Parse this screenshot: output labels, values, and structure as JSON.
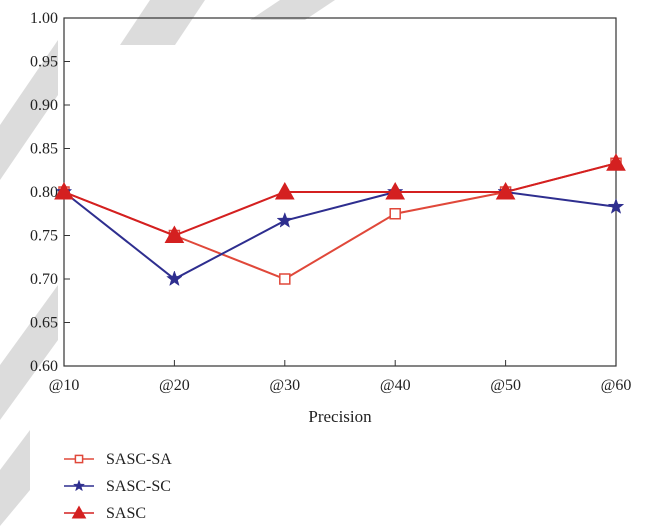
{
  "chart_data": {
    "type": "line",
    "categories": [
      "@10",
      "@20",
      "@30",
      "@40",
      "@50",
      "@60"
    ],
    "xlabel": "Precision",
    "ylabel": "",
    "ylim": [
      0.6,
      1.0
    ],
    "yticks": [
      "0.60",
      "0.65",
      "0.70",
      "0.75",
      "0.80",
      "0.85",
      "0.90",
      "0.95",
      "1.00"
    ],
    "grid": false,
    "legend_position": "bottom-left",
    "series": [
      {
        "name": "SASC-SA",
        "values": [
          0.8,
          0.75,
          0.7,
          0.775,
          0.8,
          0.833
        ],
        "color": "#e0483a",
        "marker": "open-square"
      },
      {
        "name": "SASC-SC",
        "values": [
          0.8,
          0.7,
          0.767,
          0.8,
          0.8,
          0.783
        ],
        "color": "#2e2e8f",
        "marker": "star"
      },
      {
        "name": "SASC",
        "values": [
          0.8,
          0.75,
          0.8,
          0.8,
          0.8,
          0.833
        ],
        "color": "#d42020",
        "marker": "filled-triangle"
      }
    ]
  }
}
